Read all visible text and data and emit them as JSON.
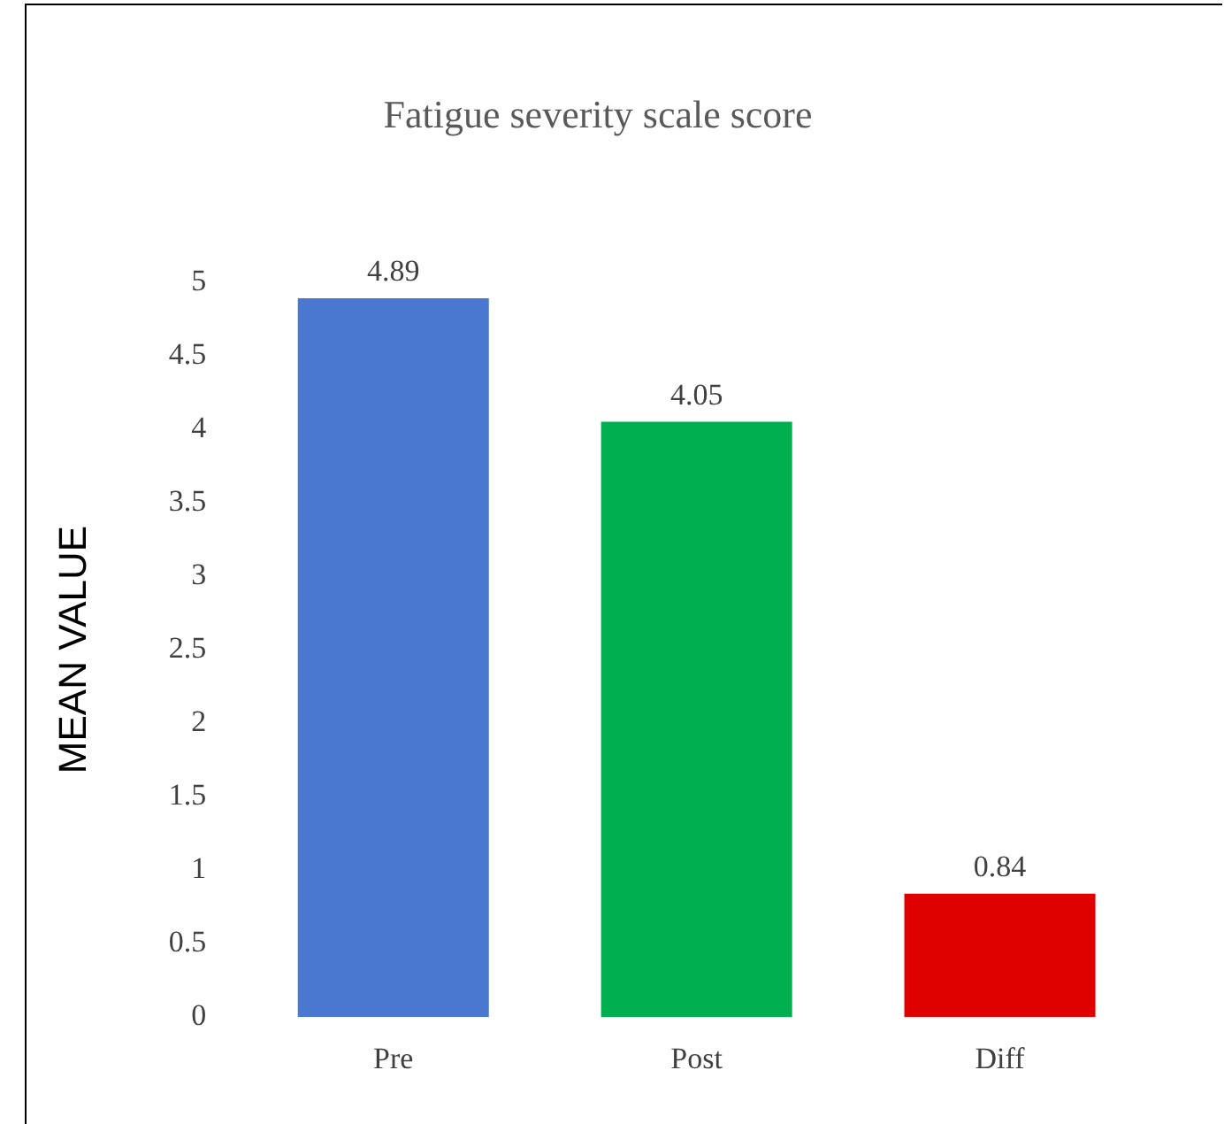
{
  "chart_data": {
    "type": "bar",
    "title": "Fatigue severity scale score",
    "ylabel": "MEAN VALUE",
    "categories": [
      "Pre",
      "Post",
      "Diff"
    ],
    "values": [
      4.89,
      4.05,
      0.84
    ],
    "colors": [
      "#4a78d0",
      "#00b050",
      "#e00000"
    ],
    "ylim": [
      0,
      5
    ],
    "yticks": [
      0,
      0.5,
      1,
      1.5,
      2,
      2.5,
      3,
      3.5,
      4,
      4.5,
      5
    ],
    "data_labels": true,
    "grid": false,
    "legend": false
  }
}
